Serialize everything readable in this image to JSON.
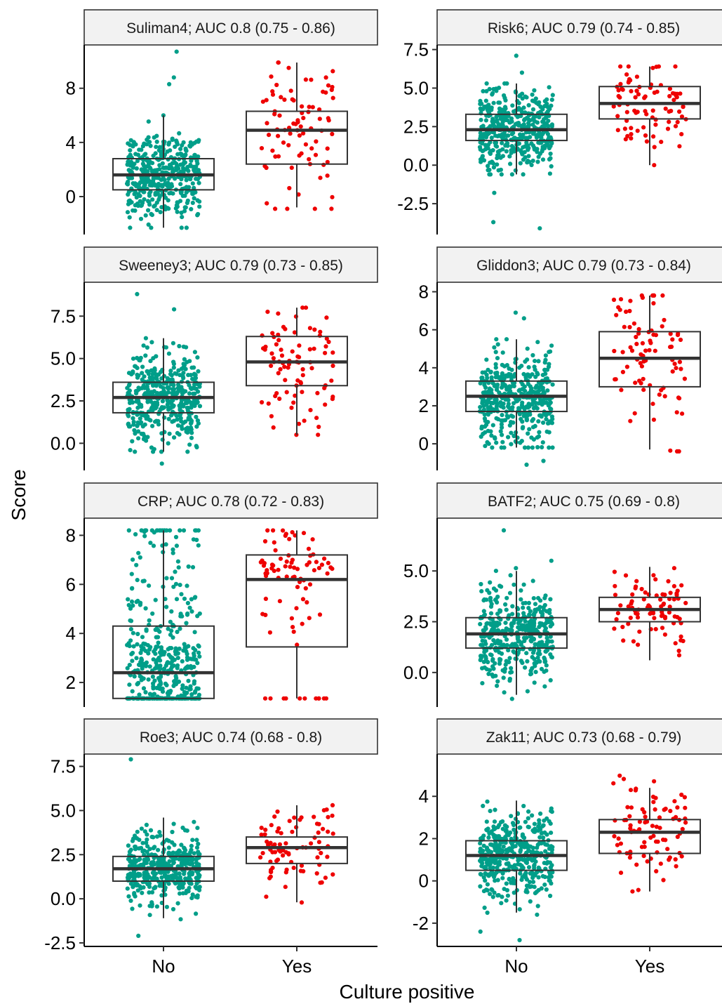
{
  "chart_data": {
    "type": "box-jitter",
    "xlabel": "Culture positive",
    "ylabel": "Score",
    "categories": [
      "No",
      "Yes"
    ],
    "colors": {
      "No": "#009E89",
      "Yes": "#EE0000"
    },
    "panels": [
      {
        "title": "Suliman4; AUC 0.8 (0.75 - 0.86)",
        "ylim": [
          -2.8,
          11.2
        ],
        "yticks": [
          0,
          4,
          8
        ],
        "boxes": [
          {
            "category": "No",
            "q1": 0.5,
            "median": 1.6,
            "q3": 2.8,
            "whisker_low": -2.3,
            "whisker_high": 6.0,
            "n": 420,
            "min": -2.3,
            "max": 6.0,
            "extremes": [
              8.3,
              8.8,
              10.7
            ]
          },
          {
            "category": "Yes",
            "q1": 2.4,
            "median": 4.9,
            "q3": 6.3,
            "whisker_low": -0.8,
            "whisker_high": 9.9,
            "n": 85,
            "min": -0.9,
            "max": 9.9
          }
        ]
      },
      {
        "title": "Risk6; AUC 0.79 (0.74 - 0.85)",
        "ylim": [
          -4.5,
          7.8
        ],
        "yticks": [
          -2.5,
          0.0,
          2.5,
          5.0,
          7.5
        ],
        "ytick_labels": [
          "-2.5",
          "0.0",
          "2.5",
          "5.0",
          "7.5"
        ],
        "boxes": [
          {
            "category": "No",
            "q1": 1.6,
            "median": 2.3,
            "q3": 3.3,
            "whisker_low": -0.6,
            "whisker_high": 5.3,
            "n": 420,
            "min": -0.6,
            "max": 5.3,
            "extremes": [
              -1.8,
              -3.7,
              -4.1,
              6.0,
              7.1
            ]
          },
          {
            "category": "Yes",
            "q1": 3.0,
            "median": 4.0,
            "q3": 5.1,
            "whisker_low": 0.0,
            "whisker_high": 6.4,
            "n": 85,
            "min": 0.0,
            "max": 6.4
          }
        ]
      },
      {
        "title": "Sweeney3; AUC 0.79 (0.73 - 0.85)",
        "ylim": [
          -1.6,
          9.5
        ],
        "yticks": [
          0.0,
          2.5,
          5.0,
          7.5
        ],
        "ytick_labels": [
          "0.0",
          "2.5",
          "5.0",
          "7.5"
        ],
        "boxes": [
          {
            "category": "No",
            "q1": 1.8,
            "median": 2.7,
            "q3": 3.6,
            "whisker_low": -0.5,
            "whisker_high": 6.2,
            "n": 420,
            "min": -0.5,
            "max": 6.2,
            "extremes": [
              -1.2,
              7.9,
              8.8
            ]
          },
          {
            "category": "Yes",
            "q1": 3.4,
            "median": 4.8,
            "q3": 6.3,
            "whisker_low": 0.5,
            "whisker_high": 8.0,
            "n": 85,
            "min": 0.5,
            "max": 8.0
          }
        ]
      },
      {
        "title": "Gliddon3; AUC 0.79 (0.73 - 0.84)",
        "ylim": [
          -1.4,
          8.5
        ],
        "yticks": [
          0,
          2,
          4,
          6,
          8
        ],
        "boxes": [
          {
            "category": "No",
            "q1": 1.7,
            "median": 2.5,
            "q3": 3.3,
            "whisker_low": -0.2,
            "whisker_high": 5.5,
            "n": 420,
            "min": -0.2,
            "max": 5.5,
            "extremes": [
              -1.1,
              -0.9,
              6.6,
              6.9
            ]
          },
          {
            "category": "Yes",
            "q1": 3.0,
            "median": 4.5,
            "q3": 5.9,
            "whisker_low": -0.3,
            "whisker_high": 7.8,
            "n": 85,
            "min": -0.4,
            "max": 7.8
          }
        ]
      },
      {
        "title": "CRP; AUC 0.78 (0.72 - 0.83)",
        "ylim": [
          1.0,
          8.7
        ],
        "yticks": [
          2,
          4,
          6,
          8
        ],
        "boxes": [
          {
            "category": "No",
            "q1": 1.35,
            "median": 2.4,
            "q3": 4.3,
            "whisker_low": 1.35,
            "whisker_high": 8.2,
            "n": 420,
            "min": 1.3,
            "max": 8.2,
            "floor": 1.35,
            "ceiling": 8.2
          },
          {
            "category": "Yes",
            "q1": 3.45,
            "median": 6.2,
            "q3": 7.2,
            "whisker_low": 1.35,
            "whisker_high": 8.2,
            "n": 85,
            "min": 1.3,
            "max": 8.2,
            "floor": 1.35,
            "ceiling": 8.2
          }
        ]
      },
      {
        "title": "BATF2; AUC 0.75 (0.69 - 0.8)",
        "ylim": [
          -1.7,
          7.6
        ],
        "yticks": [
          0.0,
          2.5,
          5.0
        ],
        "ytick_labels": [
          "0.0",
          "2.5",
          "5.0"
        ],
        "boxes": [
          {
            "category": "No",
            "q1": 1.2,
            "median": 1.9,
            "q3": 2.7,
            "whisker_low": -1.1,
            "whisker_high": 5.0,
            "n": 420,
            "min": -1.3,
            "max": 5.5,
            "extremes": [
              7.0
            ]
          },
          {
            "category": "Yes",
            "q1": 2.5,
            "median": 3.1,
            "q3": 3.7,
            "whisker_low": 0.6,
            "whisker_high": 5.2,
            "n": 85,
            "min": -0.1,
            "max": 5.2
          }
        ]
      },
      {
        "title": "Roe3; AUC 0.74 (0.68 - 0.8)",
        "ylim": [
          -2.7,
          8.2
        ],
        "yticks": [
          -2.5,
          0.0,
          2.5,
          5.0,
          7.5
        ],
        "ytick_labels": [
          "-2.5",
          "0.0",
          "2.5",
          "5.0",
          "7.5"
        ],
        "boxes": [
          {
            "category": "No",
            "q1": 1.0,
            "median": 1.7,
            "q3": 2.4,
            "whisker_low": -1.1,
            "whisker_high": 4.6,
            "n": 420,
            "min": -1.2,
            "max": 5.4,
            "extremes": [
              -2.1,
              7.9
            ]
          },
          {
            "category": "Yes",
            "q1": 2.0,
            "median": 2.9,
            "q3": 3.5,
            "whisker_low": -0.2,
            "whisker_high": 5.3,
            "n": 85,
            "min": -0.6,
            "max": 5.3
          }
        ]
      },
      {
        "title": "Zak11; AUC 0.73 (0.68 - 0.79)",
        "ylim": [
          -3.1,
          6.0
        ],
        "yticks": [
          -2,
          0,
          2,
          4
        ],
        "boxes": [
          {
            "category": "No",
            "q1": 0.5,
            "median": 1.2,
            "q3": 1.9,
            "whisker_low": -1.5,
            "whisker_high": 3.8,
            "n": 420,
            "min": -1.6,
            "max": 4.6,
            "extremes": [
              -2.4,
              -2.8
            ]
          },
          {
            "category": "Yes",
            "q1": 1.3,
            "median": 2.3,
            "q3": 2.9,
            "whisker_low": -0.5,
            "whisker_high": 4.4,
            "n": 85,
            "min": -0.5,
            "max": 5.5
          }
        ]
      }
    ]
  }
}
